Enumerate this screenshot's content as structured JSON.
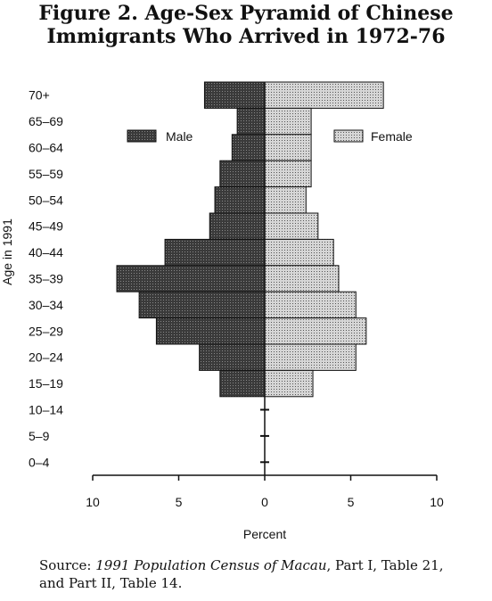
{
  "figure": {
    "title_line1": "Figure 2. Age-Sex Pyramid of Chinese",
    "title_line2": "Immigrants Who Arrived in 1972-76",
    "source_prefix": "Source: ",
    "source_italic": "1991 Population Census of Macau",
    "source_rest_line1": ", Part I, Table 21,",
    "source_line2": "and Part II, Table 14."
  },
  "colors": {
    "male_fill": "#3a3a3a",
    "female_fill": "#d6d6d6",
    "stroke": "#111111"
  },
  "chart_data": {
    "type": "bar",
    "orientation": "horizontal-pyramid",
    "categories": [
      "70+",
      "65–69",
      "60–64",
      "55–59",
      "50–54",
      "45–49",
      "40–44",
      "35–39",
      "30–34",
      "25–29",
      "20–24",
      "15–19",
      "10–14",
      "5–9",
      "0–4"
    ],
    "series": [
      {
        "name": "Male",
        "values": [
          3.5,
          1.6,
          1.9,
          2.6,
          2.9,
          3.2,
          5.8,
          8.6,
          7.3,
          6.3,
          3.8,
          2.6,
          0,
          0,
          0
        ]
      },
      {
        "name": "Female",
        "values": [
          6.9,
          2.7,
          2.7,
          2.7,
          2.4,
          3.1,
          4.0,
          4.3,
          5.3,
          5.9,
          5.3,
          2.8,
          0,
          0,
          0
        ]
      }
    ],
    "xlabel": "Percent",
    "ylabel": "Age in 1991",
    "xlim": [
      -10,
      10
    ],
    "xticks": [
      "10",
      "5",
      "0",
      "5",
      "10"
    ],
    "legend": "inside-top"
  }
}
